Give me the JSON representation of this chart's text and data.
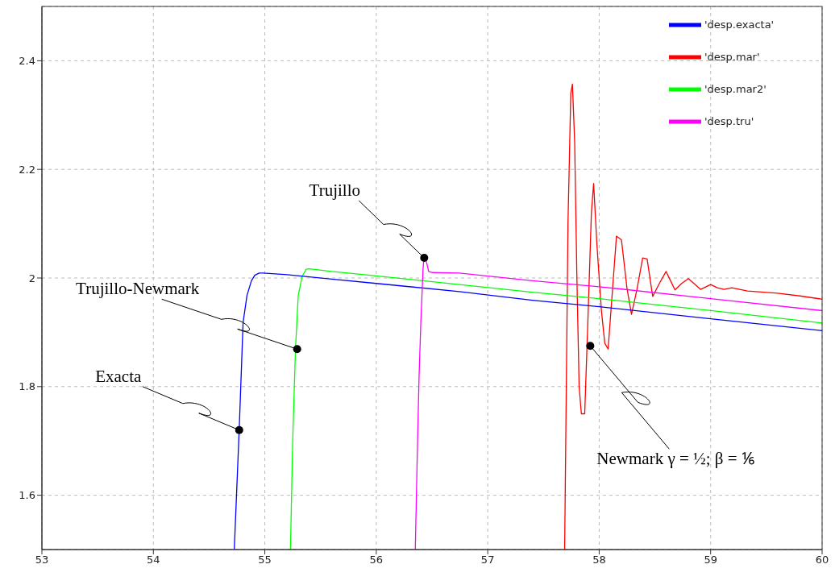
{
  "chart_data": {
    "type": "line",
    "series": [
      {
        "name": "'desp.mar'",
        "color": "#ff0000",
        "x": [
          57.69,
          57.72,
          57.745,
          57.76,
          57.78,
          57.8,
          57.82,
          57.84,
          57.87,
          57.9,
          57.93,
          57.95,
          57.98,
          58.02,
          58.05,
          58.08,
          58.12,
          58.155,
          58.2,
          58.25,
          58.29,
          58.34,
          58.39,
          58.43,
          58.48,
          58.54,
          58.6,
          58.64,
          58.68,
          58.74,
          58.8,
          58.85,
          58.91,
          59.0,
          59.06,
          59.12,
          59.19,
          59.33,
          59.6,
          59.8,
          60.0
        ],
        "values": [
          1.5,
          2.1,
          2.34,
          2.357,
          2.25,
          2.0,
          1.8,
          1.75,
          1.75,
          1.93,
          2.12,
          2.174,
          2.06,
          1.94,
          1.88,
          1.869,
          1.98,
          2.077,
          2.07,
          1.98,
          1.933,
          1.98,
          2.037,
          2.035,
          1.966,
          1.99,
          2.012,
          1.995,
          1.978,
          1.99,
          1.999,
          1.99,
          1.979,
          1.988,
          1.982,
          1.979,
          1.982,
          1.976,
          1.972,
          1.967,
          1.961
        ]
      },
      {
        "name": "'desp.mar2'",
        "color": "#00ff00",
        "x": [
          55.23,
          55.25,
          55.275,
          55.3,
          55.335,
          55.37,
          55.4,
          55.6,
          56.0,
          56.745,
          57.4,
          58.0,
          59.0,
          60.0
        ],
        "values": [
          1.5,
          1.7,
          1.869,
          1.968,
          2.003,
          2.016,
          2.017,
          2.012,
          2.004,
          1.988,
          1.974,
          1.962,
          1.94,
          1.917
        ]
      },
      {
        "name": "'desp.exacta'",
        "color": "#0000ff",
        "x": [
          54.726,
          54.75,
          54.77,
          54.805,
          54.84,
          54.88,
          54.91,
          54.95,
          54.986,
          55.2,
          55.6,
          56.0,
          56.745,
          57.4,
          58.0,
          59.0,
          60.0
        ],
        "values": [
          1.5,
          1.62,
          1.72,
          1.918,
          1.968,
          1.995,
          2.005,
          2.009,
          2.009,
          2.006,
          1.998,
          1.99,
          1.975,
          1.959,
          1.947,
          1.925,
          1.903
        ]
      },
      {
        "name": "'desp.tru'",
        "color": "#ff00ff",
        "x": [
          56.35,
          56.365,
          56.384,
          56.4,
          56.42,
          56.428,
          56.45,
          56.47,
          56.505,
          56.745,
          57.4,
          58.0,
          59.0,
          60.0
        ],
        "values": [
          1.5,
          1.65,
          1.819,
          1.92,
          2.018,
          2.037,
          2.03,
          2.012,
          2.01,
          2.009,
          1.995,
          1.984,
          1.962,
          1.94
        ]
      }
    ],
    "xlim": [
      53,
      60
    ],
    "ylim": [
      1.5,
      2.5
    ],
    "xticks": [
      53,
      54,
      55,
      56,
      57,
      58,
      59,
      60
    ],
    "yticks": [
      1.6,
      1.8,
      2,
      2.2,
      2.4
    ],
    "grid": true,
    "legend": "top right",
    "annotations": [
      {
        "text": "Trujillo",
        "x": 56.43,
        "y": 2.037
      },
      {
        "text": "Trujillo-Newmark",
        "x": 55.29,
        "y": 1.869
      },
      {
        "text": "Exacta",
        "x": 54.77,
        "y": 1.72
      },
      {
        "text": "Newmark  γ = ½; β = ⅙",
        "x": 57.92,
        "y": 1.875
      }
    ]
  }
}
